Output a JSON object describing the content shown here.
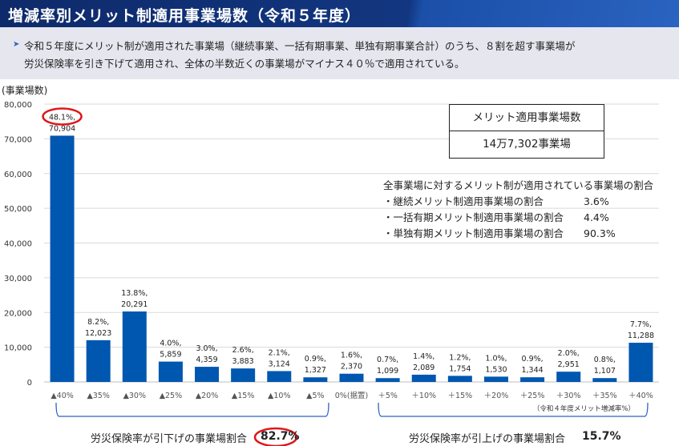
{
  "title": "増減率別メリット制適用事業場数（令和５年度）",
  "lead": [
    "令和５年度にメリット制が適用された事業場（継続事業、一括有期事業、単独有期事業合計）のうち、８割を超す事業場が",
    "労災保険率を引き下げて適用され、全体の半数近くの事業場がマイナス４０％で適用されている。"
  ],
  "summary_box": {
    "header": "メリット適用事業場数",
    "value": "14万7,302事業場"
  },
  "notes": {
    "title": "全事業場に対するメリット制が適用されている事業場の割合",
    "rows": [
      {
        "label": "・継続メリット制適用事業場の割合",
        "value": "3.6%"
      },
      {
        "label": "・一括有期メリット制適用事業場の割合",
        "value": "4.4%"
      },
      {
        "label": "・単独有期メリット制適用事業場の割合",
        "value": "90.3%"
      }
    ]
  },
  "brackets": {
    "down_label": "労災保険率が引下げの事業場割合",
    "down_value": "82.7%",
    "up_label": "労災保険率が引上げの事業場割合",
    "up_value": "15.7%"
  },
  "chart_data": {
    "type": "bar",
    "ylabel": "(事業場数)",
    "xlabel": "（令和４年度メリット増減率%）",
    "ylim": [
      0,
      80000
    ],
    "yticks": [
      "0",
      "10,000",
      "20,000",
      "30,000",
      "40,000",
      "50,000",
      "60,000",
      "70,000",
      "80,000"
    ],
    "grid": true,
    "bar_color": "#0057b0",
    "highlight_color": "#e0161b",
    "categories": [
      "▲40%",
      "▲35%",
      "▲30%",
      "▲25%",
      "▲20%",
      "▲15%",
      "▲10%",
      "▲5%",
      "0%(据置)",
      "＋5%",
      "＋10%",
      "＋15%",
      "＋20%",
      "＋25%",
      "＋30%",
      "＋35%",
      "＋40%"
    ],
    "values": [
      70904,
      12023,
      20291,
      5859,
      4359,
      3883,
      3124,
      1327,
      2370,
      1099,
      2089,
      1754,
      1530,
      1344,
      2951,
      1107,
      11288
    ],
    "value_labels": [
      "70,904",
      "12,023",
      "20,291",
      "5,859",
      "4,359",
      "3,883",
      "3,124",
      "1,327",
      "2,370",
      "1,099",
      "2,089",
      "1,754",
      "1,530",
      "1,344",
      "2,951",
      "1,107",
      "11,288"
    ],
    "percent_labels": [
      "48.1%,",
      "8.2%,",
      "13.8%,",
      "4.0%,",
      "3.0%,",
      "2.6%,",
      "2.1%,",
      "0.9%,",
      "1.6%,",
      "0.7%,",
      "1.4%,",
      "1.2%,",
      "1.0%,",
      "0.9%,",
      "2.0%,",
      "0.8%,",
      "7.7%,"
    ]
  }
}
